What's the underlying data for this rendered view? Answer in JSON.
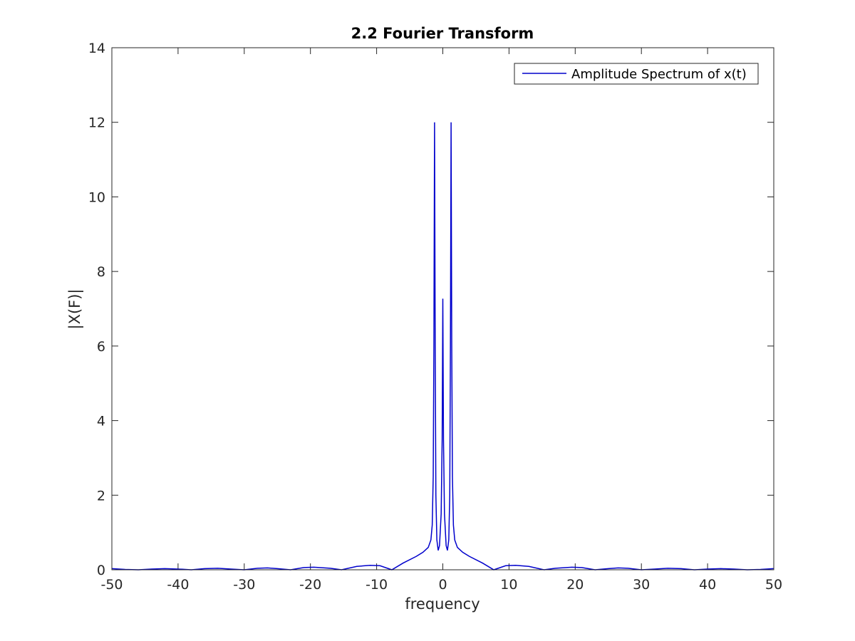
{
  "chart_data": {
    "type": "line",
    "title": "2.2 Fourier Transform",
    "xlabel": "frequency",
    "ylabel": "|X(F)|",
    "xlim": [
      -50,
      50
    ],
    "ylim": [
      0,
      14
    ],
    "xticks": [
      -50,
      -40,
      -30,
      -20,
      -10,
      0,
      10,
      20,
      30,
      40,
      50
    ],
    "yticks": [
      0,
      2,
      4,
      6,
      8,
      10,
      12,
      14
    ],
    "xtick_labels": [
      "-50",
      "-40",
      "-30",
      "-20",
      "-10",
      "0",
      "10",
      "20",
      "30",
      "40",
      "50"
    ],
    "ytick_labels": [
      "0",
      "2",
      "4",
      "6",
      "8",
      "10",
      "12",
      "14"
    ],
    "grid": false,
    "legend_position": "top-right",
    "series": [
      {
        "name": "Amplitude Spectrum of x(t)",
        "color": "#0000cc",
        "points": [
          [
            -50,
            0.03
          ],
          [
            -48,
            0.01
          ],
          [
            -46,
            0.0
          ],
          [
            -44,
            0.02
          ],
          [
            -42,
            0.03
          ],
          [
            -40,
            0.02
          ],
          [
            -38,
            0.0
          ],
          [
            -36,
            0.03
          ],
          [
            -34,
            0.04
          ],
          [
            -32,
            0.02
          ],
          [
            -30,
            0.0
          ],
          [
            -28,
            0.04
          ],
          [
            -26.5,
            0.05
          ],
          [
            -25,
            0.03
          ],
          [
            -23,
            0.0
          ],
          [
            -21,
            0.06
          ],
          [
            -19.5,
            0.07
          ],
          [
            -17,
            0.04
          ],
          [
            -15.3,
            0.0
          ],
          [
            -13,
            0.09
          ],
          [
            -11,
            0.12
          ],
          [
            -9.5,
            0.11
          ],
          [
            -7.7,
            0.0
          ],
          [
            -6,
            0.18
          ],
          [
            -4,
            0.36
          ],
          [
            -3,
            0.47
          ],
          [
            -2.2,
            0.6
          ],
          [
            -1.8,
            0.8
          ],
          [
            -1.6,
            1.2
          ],
          [
            -1.45,
            2.5
          ],
          [
            -1.35,
            6.0
          ],
          [
            -1.25,
            12.0
          ],
          [
            -1.15,
            6.0
          ],
          [
            -1.05,
            2.0
          ],
          [
            -0.9,
            0.8
          ],
          [
            -0.7,
            0.52
          ],
          [
            -0.5,
            0.65
          ],
          [
            -0.25,
            1.5
          ],
          [
            -0.1,
            3.5
          ],
          [
            0,
            7.27
          ],
          [
            0.1,
            3.5
          ],
          [
            0.25,
            1.5
          ],
          [
            0.5,
            0.65
          ],
          [
            0.7,
            0.52
          ],
          [
            0.9,
            0.8
          ],
          [
            1.05,
            2.0
          ],
          [
            1.15,
            6.0
          ],
          [
            1.25,
            12.0
          ],
          [
            1.35,
            6.0
          ],
          [
            1.45,
            2.5
          ],
          [
            1.6,
            1.2
          ],
          [
            1.8,
            0.8
          ],
          [
            2.2,
            0.6
          ],
          [
            3,
            0.47
          ],
          [
            4,
            0.36
          ],
          [
            6,
            0.18
          ],
          [
            7.7,
            0.0
          ],
          [
            9.5,
            0.11
          ],
          [
            11,
            0.12
          ],
          [
            13,
            0.09
          ],
          [
            15.3,
            0.0
          ],
          [
            17,
            0.04
          ],
          [
            19.5,
            0.07
          ],
          [
            21,
            0.06
          ],
          [
            23,
            0.0
          ],
          [
            25,
            0.03
          ],
          [
            26.5,
            0.05
          ],
          [
            28,
            0.04
          ],
          [
            30,
            0.0
          ],
          [
            32,
            0.02
          ],
          [
            34,
            0.04
          ],
          [
            36,
            0.03
          ],
          [
            38,
            0.0
          ],
          [
            40,
            0.02
          ],
          [
            42,
            0.03
          ],
          [
            44,
            0.02
          ],
          [
            46,
            0.0
          ],
          [
            48,
            0.01
          ],
          [
            50,
            0.03
          ]
        ]
      }
    ]
  }
}
